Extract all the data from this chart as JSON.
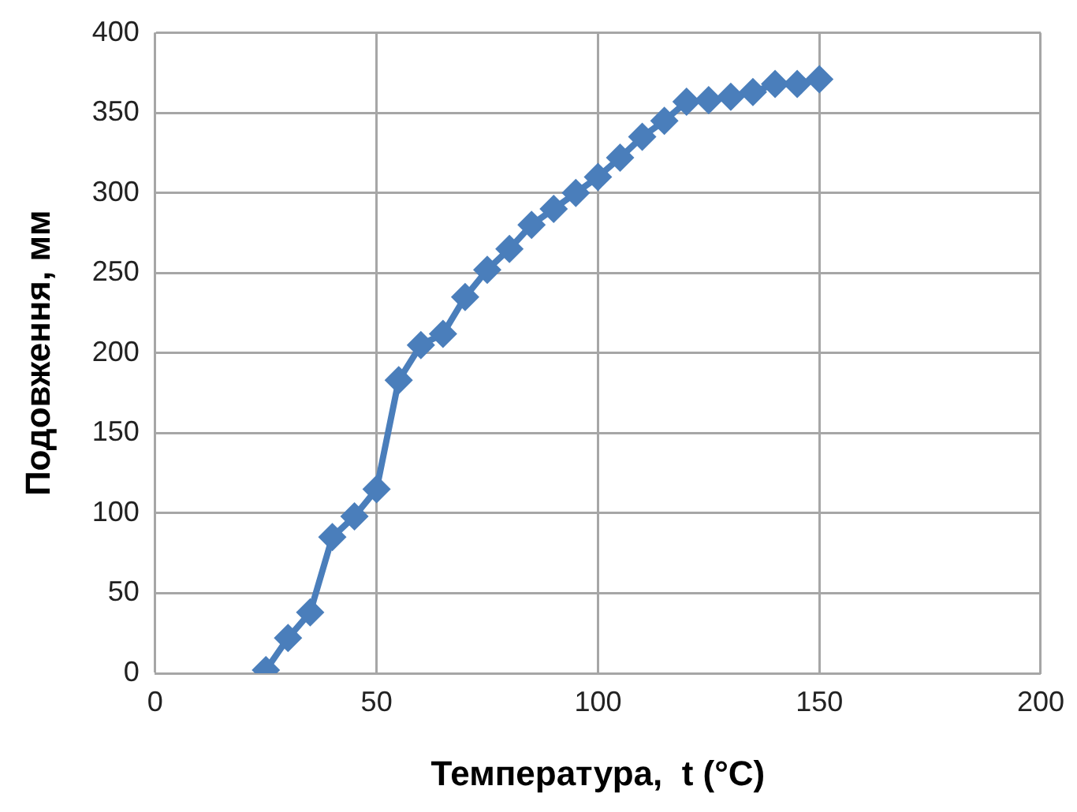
{
  "chart_data": {
    "type": "line",
    "xlabel": "Температура,  t (°С)",
    "ylabel": "Подовження, мм",
    "x": [
      25,
      30,
      35,
      40,
      45,
      50,
      55,
      60,
      65,
      70,
      75,
      80,
      85,
      90,
      95,
      100,
      105,
      110,
      115,
      120,
      125,
      130,
      135,
      140,
      145,
      150
    ],
    "series": [
      {
        "color": "#4a7ebb",
        "values": [
          2,
          22,
          38,
          85,
          98,
          115,
          183,
          205,
          212,
          235,
          252,
          265,
          280,
          290,
          300,
          310,
          322,
          335,
          345,
          357,
          358,
          360,
          363,
          368,
          368,
          371
        ]
      }
    ],
    "xlim": [
      0,
      200
    ],
    "xticks": [
      0,
      50,
      100,
      150,
      200
    ],
    "ylim": [
      0,
      400
    ],
    "yticks": [
      0,
      50,
      100,
      150,
      200,
      250,
      300,
      350,
      400
    ],
    "grid": true,
    "legend": false,
    "marker": "diamond",
    "line_style": "solid"
  }
}
